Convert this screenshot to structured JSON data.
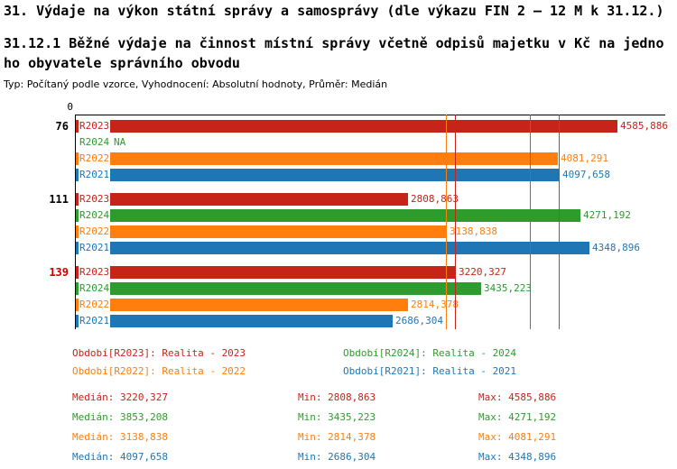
{
  "header": {
    "title1": "31. Výdaje na výkon státní správy a samosprávy (dle výkazu FIN 2 – 12 M k 31.12.)",
    "title2_lines": [
      "31.12.1 Běžné výdaje na činnost místní správy včetně odpisů majetku v Kč na jedno",
      "ho obyvatele správního obvodu"
    ],
    "meta": "Typ: Počítaný podle vzorce, Vyhodnocení: Absolutní hodnoty, Průměr: Medián"
  },
  "colors": {
    "R2023": "#c62418",
    "R2024": "#2e9b2e",
    "R2022": "#ff7e0e",
    "R2021": "#1e76b4",
    "highlight_label": "#cc0000",
    "text": "#000000"
  },
  "chart_data": {
    "type": "bar",
    "orientation": "horizontal",
    "axis_zero_label": "0",
    "xlim": [
      0,
      4700
    ],
    "grid": "median-lines-only",
    "series_order": [
      "R2023",
      "R2024",
      "R2022",
      "R2021"
    ],
    "groups": [
      {
        "label": "76",
        "highlight": false,
        "bars": [
          {
            "series": "R2023",
            "value": 4585.886,
            "display": "4585,886"
          },
          {
            "series": "R2024",
            "value": null,
            "display": "NA"
          },
          {
            "series": "R2022",
            "value": 4081.291,
            "display": "4081,291"
          },
          {
            "series": "R2021",
            "value": 4097.658,
            "display": "4097,658"
          }
        ]
      },
      {
        "label": "111",
        "highlight": false,
        "bars": [
          {
            "series": "R2023",
            "value": 2808.863,
            "display": "2808,863"
          },
          {
            "series": "R2024",
            "value": 4271.192,
            "display": "4271,192"
          },
          {
            "series": "R2022",
            "value": 3138.838,
            "display": "3138,838"
          },
          {
            "series": "R2021",
            "value": 4348.896,
            "display": "4348,896"
          }
        ]
      },
      {
        "label": "139",
        "highlight": true,
        "bars": [
          {
            "series": "R2023",
            "value": 3220.327,
            "display": "3220,327"
          },
          {
            "series": "R2024",
            "value": 3435.223,
            "display": "3435,223"
          },
          {
            "series": "R2022",
            "value": 2814.378,
            "display": "2814,378"
          },
          {
            "series": "R2021",
            "value": 2686.304,
            "display": "2686,304"
          }
        ]
      }
    ],
    "median_lines": [
      {
        "series": "R2023",
        "value": 3220.327
      },
      {
        "series": "R2024",
        "value": 3853.208
      },
      {
        "series": "R2022",
        "value": 3138.838
      },
      {
        "series": "R2021",
        "value": 4097.658
      }
    ]
  },
  "legend": [
    {
      "series": "R2023",
      "label": "Období[R2023]: Realita - 2023"
    },
    {
      "series": "R2024",
      "label": "Období[R2024]: Realita - 2024"
    },
    {
      "series": "R2022",
      "label": "Období[R2022]: Realita - 2022"
    },
    {
      "series": "R2021",
      "label": "Období[R2021]: Realita - 2021"
    }
  ],
  "stats": [
    {
      "series": "R2023",
      "median": "Medián: 3220,327",
      "min": "Min: 2808,863",
      "max": "Max: 4585,886"
    },
    {
      "series": "R2024",
      "median": "Medián: 3853,208",
      "min": "Min: 3435,223",
      "max": "Max: 4271,192"
    },
    {
      "series": "R2022",
      "median": "Medián: 3138,838",
      "min": "Min: 2814,378",
      "max": "Max: 4081,291"
    },
    {
      "series": "R2021",
      "median": "Medián: 4097,658",
      "min": "Min: 2686,304",
      "max": "Max: 4348,896"
    }
  ]
}
